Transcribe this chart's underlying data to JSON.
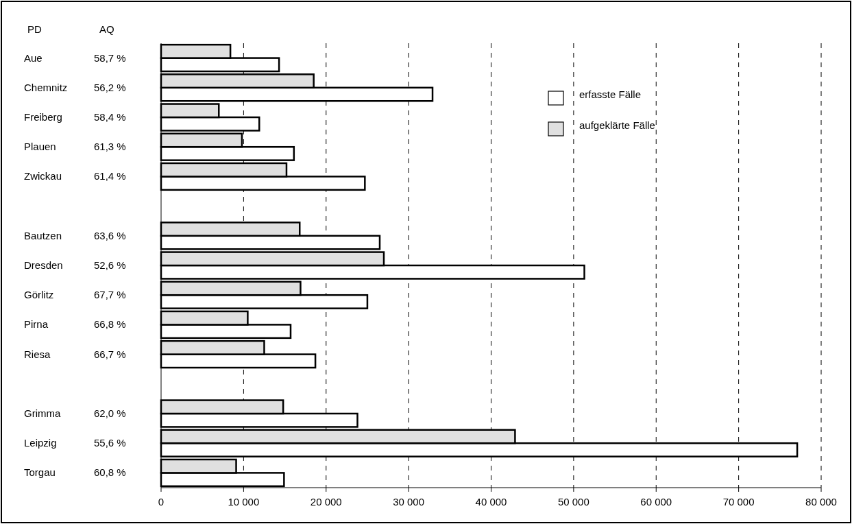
{
  "chart_data": {
    "type": "bar",
    "orientation": "horizontal",
    "ylabel": "PD",
    "categories": [
      "Aue",
      "Chemnitz",
      "Freiberg",
      "Plauen",
      "Zwickau",
      null,
      "Bautzen",
      "Dresden",
      "Görlitz",
      "Pirna",
      "Riesa",
      null,
      "Grimma",
      "Leipzig",
      "Torgau"
    ],
    "series": [
      {
        "name": "erfasste Fälle",
        "color": "#ffffff",
        "values": [
          14300,
          32900,
          11900,
          16100,
          24700,
          null,
          26500,
          51300,
          25000,
          15700,
          18700,
          null,
          23800,
          77100,
          14900
        ]
      },
      {
        "name": "aufgeklärte Fälle",
        "color": "#e0e0e0",
        "values": [
          8400,
          18500,
          7000,
          9800,
          15200,
          null,
          16800,
          27000,
          16900,
          10500,
          12500,
          null,
          14800,
          42900,
          9100
        ]
      }
    ],
    "xlim": [
      0,
      80000
    ],
    "xticks": [
      {
        "value": 0,
        "label": "0"
      },
      {
        "value": 10000,
        "label": "10 000"
      },
      {
        "value": 20000,
        "label": "20 000"
      },
      {
        "value": 30000,
        "label": "30 000"
      },
      {
        "value": 40000,
        "label": "40 000"
      },
      {
        "value": 50000,
        "label": "50 000"
      },
      {
        "value": 60000,
        "label": "60 000"
      },
      {
        "value": 70000,
        "label": "70 000"
      },
      {
        "value": 80000,
        "label": "80 000"
      }
    ],
    "grid": "x",
    "legend": "top right",
    "annotations": [
      "AQ",
      "58,7 %",
      "56,2 %",
      "58,4 %",
      "61,3 %",
      "61,4 %",
      "63,6 %",
      "52,6 %",
      "67,7 %",
      "66,8 %",
      "66,7 %",
      "62,0 %",
      "55,6 %",
      "60,8 %"
    ]
  }
}
